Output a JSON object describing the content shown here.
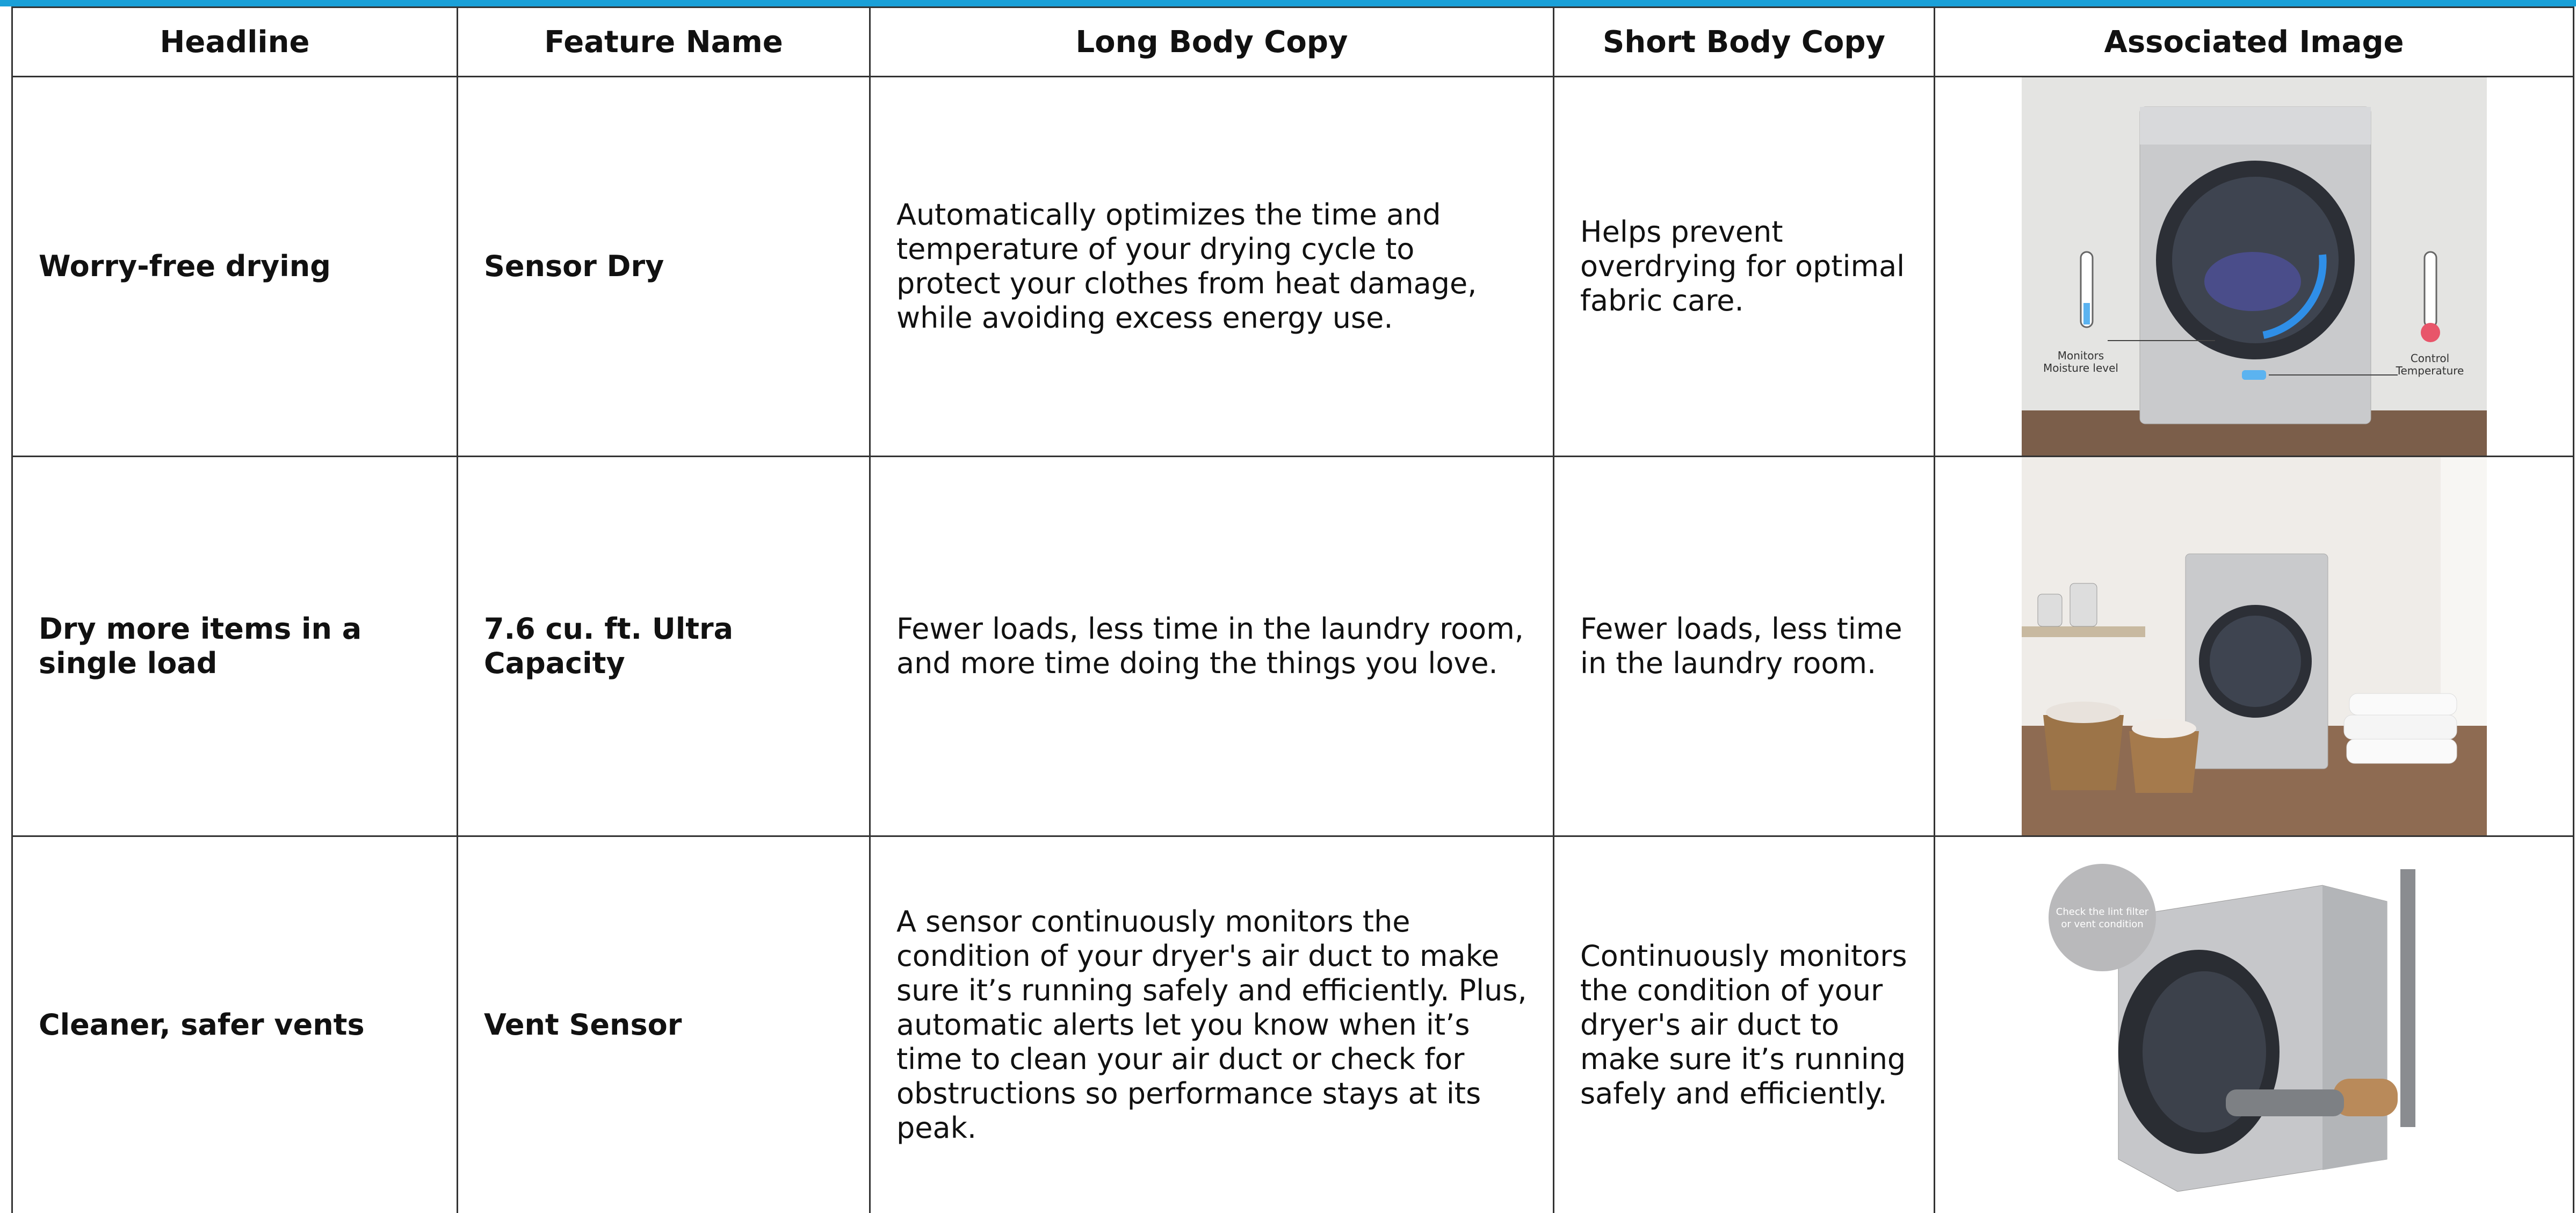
{
  "table": {
    "header": [
      "Headline",
      "Feature Name",
      "Long Body Copy",
      "Short Body Copy",
      "Associated Image"
    ],
    "rows": [
      {
        "headline": "Worry-free drying",
        "feature_name": "Sensor Dry",
        "long_body_copy": "Automatically optimizes the time and temperature of your drying cycle to protect your clothes from heat damage, while avoiding excess energy use.",
        "short_body_copy": "Helps prevent overdrying for optimal fabric care.",
        "image_labels": [
          "Monitors",
          "Moisture level",
          "Control",
          "Temperature"
        ]
      },
      {
        "headline": "Dry more items in a single load",
        "feature_name": "7.6 cu. ft. Ultra Capacity",
        "long_body_copy": "Fewer loads, less time in the laundry room, and more time doing the things you love.",
        "short_body_copy": "Fewer loads, less time in the laundry room."
      },
      {
        "headline": "Cleaner, safer vents",
        "feature_name": "Vent Sensor",
        "long_body_copy": "A sensor continuously monitors the condition of your dryer's air duct to make sure it’s running safely and efficiently. Plus, automatic alerts let you know when it’s time to clean your air duct or check for obstructions so performance stays at its peak.",
        "short_body_copy": "Continuously monitors the condition of your dryer's air duct to make sure it’s running safely and efficiently.",
        "image_labels": [
          "Check the lint filter",
          "or vent condition"
        ]
      }
    ]
  }
}
